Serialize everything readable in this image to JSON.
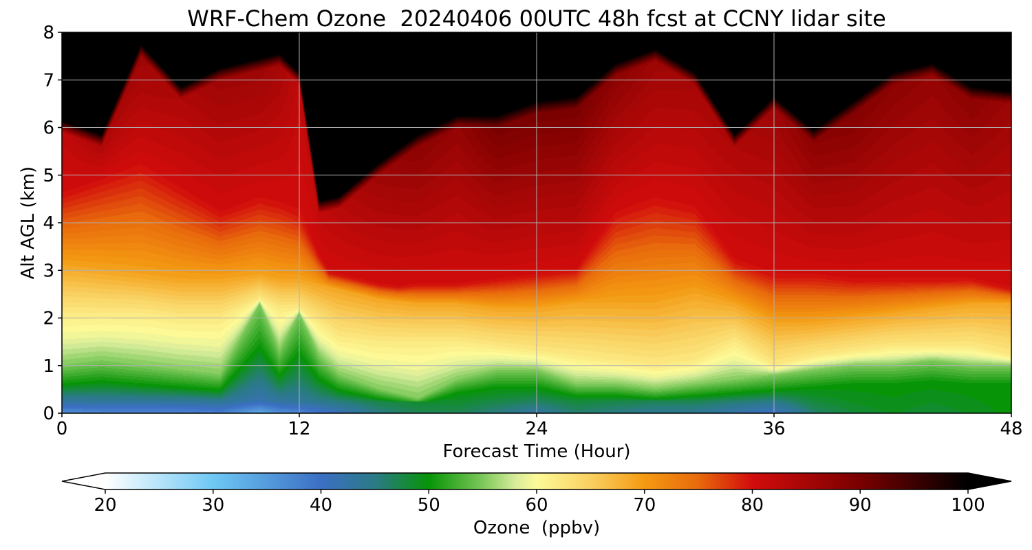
{
  "chart_data": {
    "type": "heatmap",
    "title": "WRF-Chem Ozone  20240406 00UTC 48h fcst at CCNY lidar site",
    "xlabel": "Forecast Time (Hour)",
    "ylabel": "Alt AGL (km)",
    "xlim": [
      0,
      48
    ],
    "ylim": [
      0,
      8
    ],
    "x_ticks": [
      0,
      12,
      24,
      36,
      48
    ],
    "y_ticks": [
      0,
      1,
      2,
      3,
      4,
      5,
      6,
      7,
      8
    ],
    "grid": true,
    "z_unit": "ppbv",
    "colorbar": {
      "label": "Ozone  (ppbv)",
      "min": 20,
      "max": 100,
      "ticks": [
        20,
        30,
        40,
        50,
        60,
        70,
        80,
        90,
        100
      ],
      "extend": "both",
      "stops": [
        {
          "value": 20,
          "color": "#ffffff"
        },
        {
          "value": 30,
          "color": "#6ec8f4"
        },
        {
          "value": 40,
          "color": "#3b6fc4"
        },
        {
          "value": 45,
          "color": "#2b7a86"
        },
        {
          "value": 50,
          "color": "#079407"
        },
        {
          "value": 55,
          "color": "#7cc85a"
        },
        {
          "value": 58,
          "color": "#d6ec9a"
        },
        {
          "value": 60,
          "color": "#fdfa98"
        },
        {
          "value": 65,
          "color": "#f9d060"
        },
        {
          "value": 70,
          "color": "#f49a12"
        },
        {
          "value": 75,
          "color": "#e86a0c"
        },
        {
          "value": 80,
          "color": "#d20c0c"
        },
        {
          "value": 90,
          "color": "#7a0000"
        },
        {
          "value": 100,
          "color": "#000000"
        }
      ]
    },
    "x": [
      0,
      2,
      4,
      6,
      8,
      10,
      11,
      12,
      13,
      14,
      16,
      18,
      20,
      22,
      24,
      26,
      28,
      30,
      32,
      34,
      36,
      38,
      40,
      42,
      44,
      46,
      48
    ],
    "z_height_km": [
      0,
      0.2,
      0.5,
      0.8,
      1,
      1.3,
      1.5,
      1.8,
      2.1,
      2.5,
      3,
      3.5,
      4,
      4.5,
      5,
      5.5,
      6,
      6.5,
      7,
      7.5,
      8
    ],
    "column_profiles": {
      "y_clean_ppbv": [
        36,
        37,
        37,
        37,
        38,
        33,
        36,
        37,
        39,
        41,
        45,
        47,
        47,
        45,
        43,
        46,
        45,
        44,
        44,
        42,
        40,
        46,
        48,
        49,
        48,
        49,
        50
      ],
      "green_top_km": [
        1.0,
        1.1,
        1.0,
        0.9,
        0.8,
        2.3,
        1.3,
        2.1,
        1.2,
        0.8,
        0.5,
        0.3,
        0.7,
        0.9,
        0.9,
        0.6,
        0.6,
        0.5,
        0.6,
        0.7,
        0.8,
        0.9,
        1.0,
        1.0,
        1.1,
        1.0,
        1.0
      ],
      "yellow_top_km": [
        2.1,
        2.1,
        2.1,
        2.0,
        2.0,
        2.4,
        2.2,
        2.2,
        1.9,
        1.6,
        1.5,
        1.5,
        1.5,
        1.4,
        1.3,
        1.2,
        1.1,
        1.0,
        1.1,
        1.5,
        1.0,
        1.2,
        1.3,
        1.4,
        1.4,
        1.4,
        1.2
      ],
      "orange_top_km": [
        3.1,
        3.0,
        2.9,
        2.8,
        2.8,
        2.9,
        2.8,
        2.8,
        2.7,
        2.6,
        2.4,
        2.3,
        2.3,
        2.2,
        2.2,
        2.3,
        2.3,
        2.3,
        2.5,
        2.3,
        1.9,
        1.9,
        2.0,
        2.1,
        2.2,
        2.3,
        2.3
      ],
      "red_top_km": [
        4.6,
        4.9,
        5.2,
        4.7,
        4.2,
        4.5,
        4.4,
        4.2,
        3.3,
        2.6,
        2.6,
        2.7,
        2.7,
        2.8,
        2.9,
        3.0,
        4.2,
        4.5,
        4.3,
        3.2,
        2.9,
        2.9,
        2.8,
        2.8,
        2.8,
        2.8,
        2.6
      ],
      "black_bottom_km": [
        5.9,
        5.6,
        7.5,
        6.6,
        7.0,
        7.2,
        7.3,
        6.9,
        4.2,
        4.3,
        5.0,
        5.6,
        6.0,
        6.0,
        6.3,
        6.4,
        7.1,
        7.4,
        6.9,
        5.6,
        6.4,
        5.7,
        6.3,
        6.9,
        7.1,
        6.6,
        6.5
      ],
      "aloft_peak_ppbv": [
        82,
        84,
        86,
        84,
        86,
        86,
        85,
        82,
        82,
        83,
        86,
        88,
        87,
        90,
        90,
        90,
        88,
        86,
        85,
        84,
        86,
        88,
        89,
        88,
        87,
        88,
        86
      ]
    }
  }
}
